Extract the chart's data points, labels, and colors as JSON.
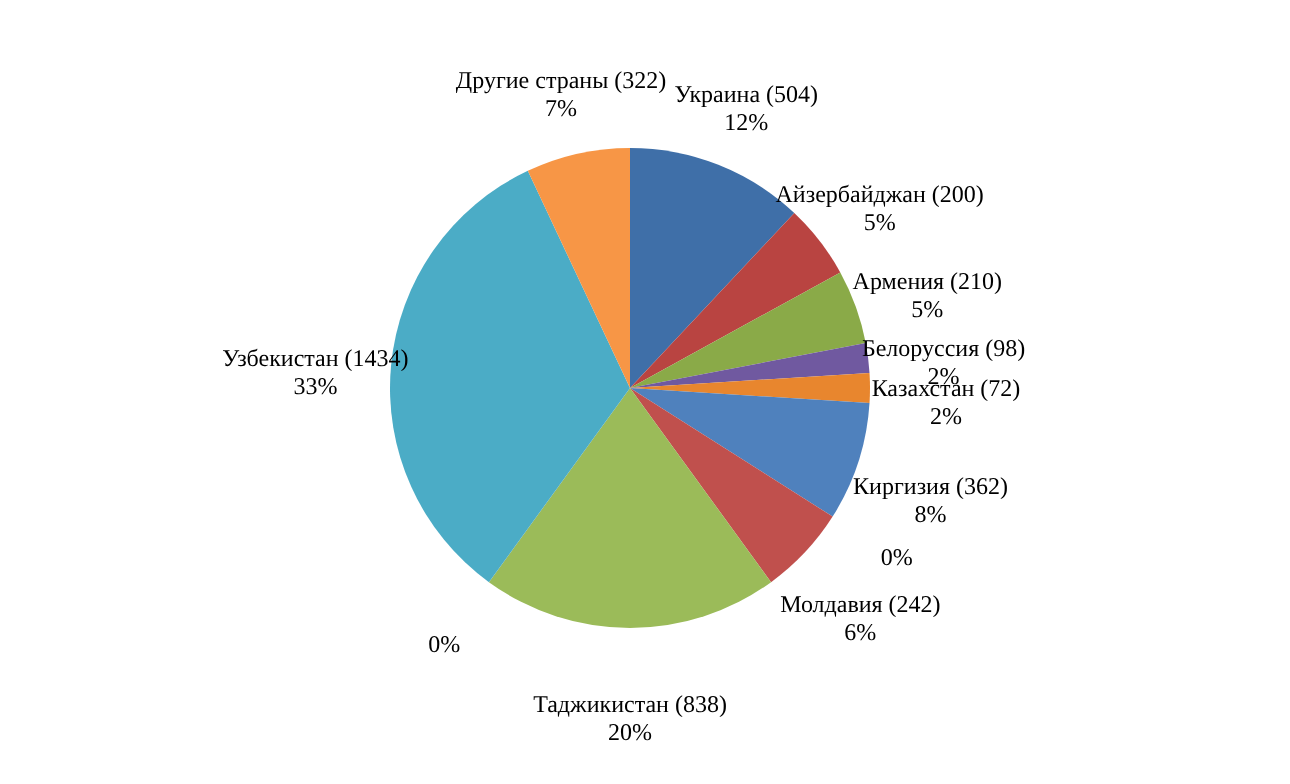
{
  "chart_data": {
    "type": "pie",
    "categories": [
      "Украина (504)",
      "Айзербайджан (200)",
      "Армения (210)",
      "Белоруссия (98)",
      "Казахстан (72)",
      "Киргизия (362)",
      null,
      "Молдавия (242)",
      "Таджикистан (838)",
      null,
      "Узбекистан (1434)",
      "Другие страны (322)"
    ],
    "values": [
      12,
      5,
      5,
      2,
      2,
      8,
      0,
      6,
      20,
      0,
      33,
      7
    ],
    "value_labels": [
      "12%",
      "5%",
      "5%",
      "2%",
      "2%",
      "8%",
      "0%",
      "6%",
      "20%",
      "0%",
      "33%",
      "7%"
    ],
    "colors": [
      "#3f6fa8",
      "#b94441",
      "#8aaa48",
      "#7059a0",
      "#e8862e",
      "#4f81bd",
      "#c0504d",
      "#c0504d",
      "#9bbb59",
      "#8064a2",
      "#4bacc6",
      "#f79646"
    ],
    "legend": false
  }
}
